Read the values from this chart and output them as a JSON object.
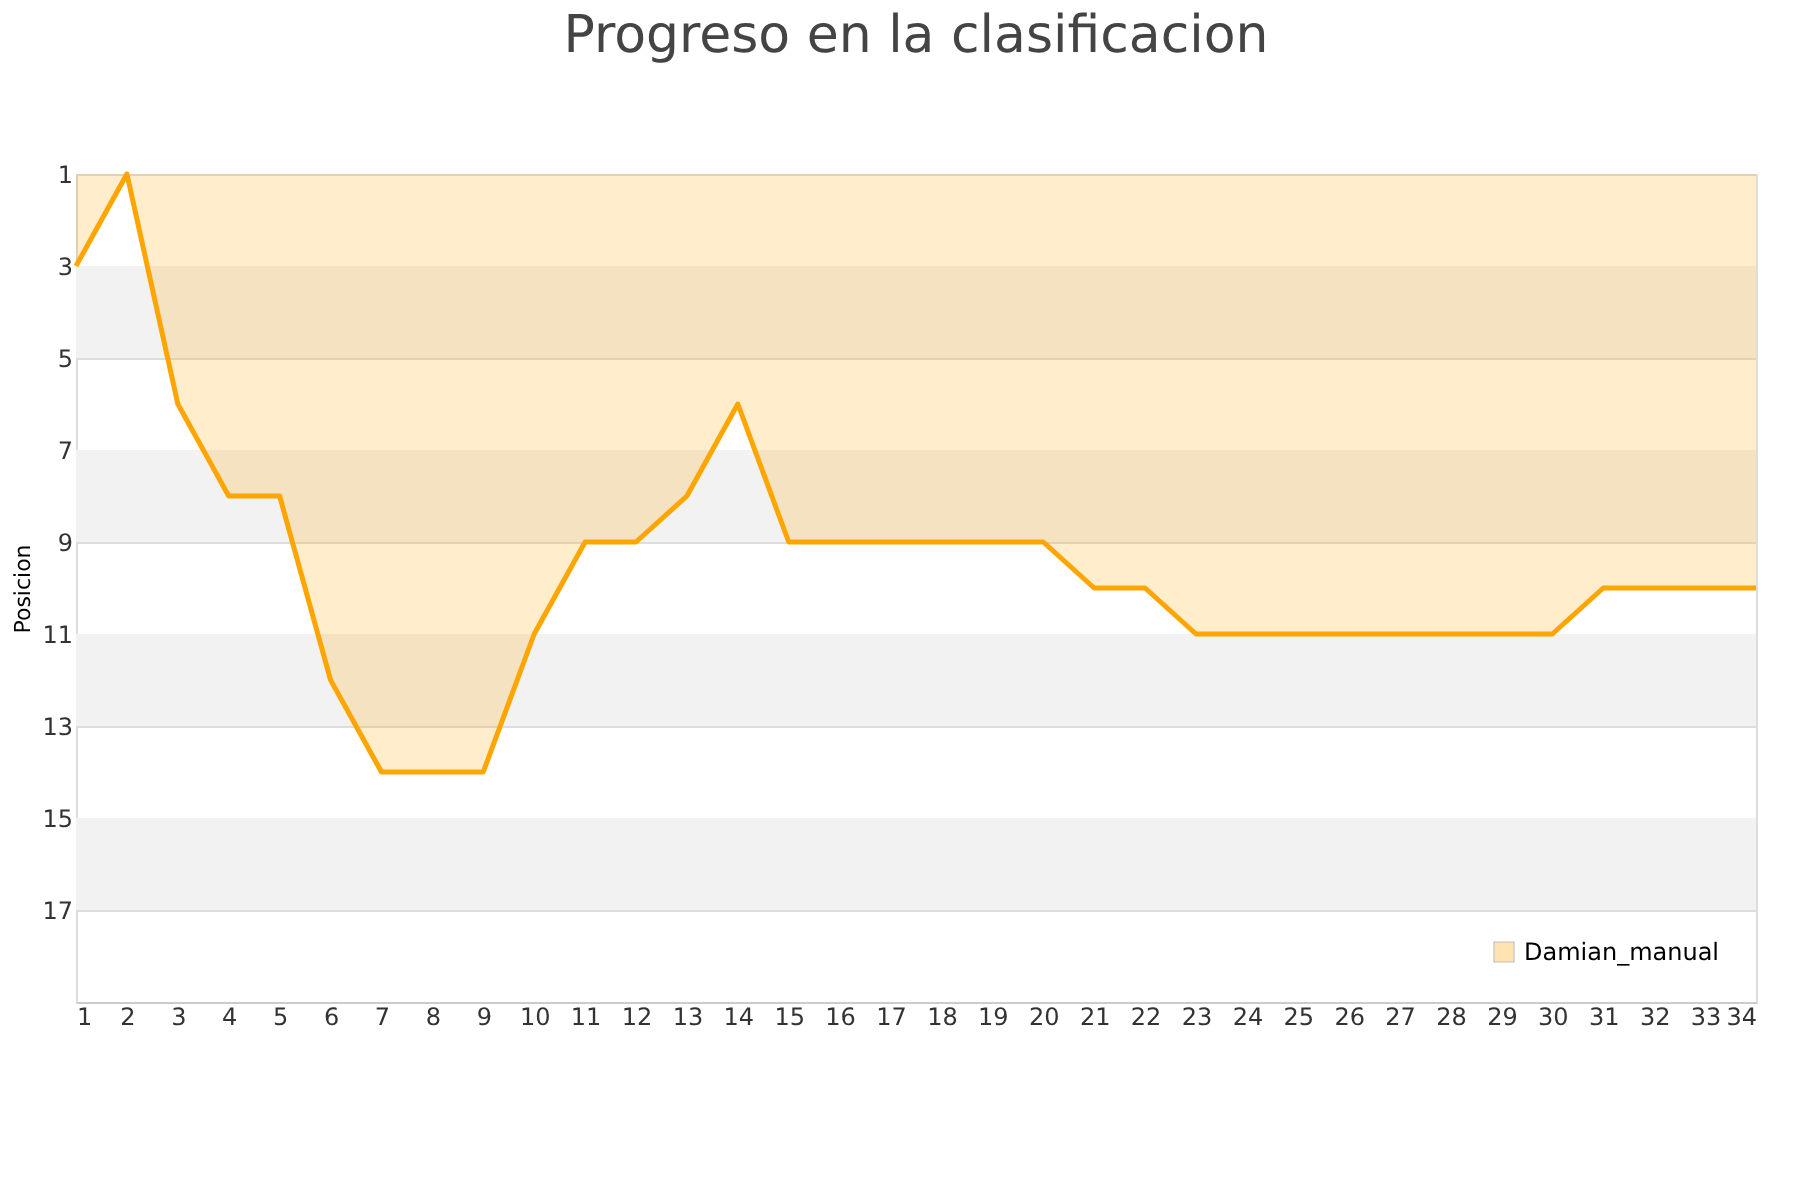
{
  "chart_data": {
    "type": "area",
    "title": "Progreso en la clasificacion",
    "ylabel": "Posicion",
    "x": [
      1,
      2,
      3,
      4,
      5,
      6,
      7,
      8,
      9,
      10,
      11,
      12,
      13,
      14,
      15,
      16,
      17,
      18,
      19,
      20,
      21,
      22,
      23,
      24,
      25,
      26,
      27,
      28,
      29,
      30,
      31,
      32,
      33,
      34
    ],
    "series": [
      {
        "name": "Damian_manual",
        "color": "#ffa500",
        "values": [
          3,
          1,
          6,
          8,
          8,
          12,
          14,
          14,
          14,
          11,
          9,
          9,
          8,
          6,
          9,
          9,
          9,
          9,
          9,
          9,
          10,
          10,
          11,
          11,
          11,
          11,
          11,
          11,
          11,
          11,
          10,
          10,
          10,
          10
        ]
      }
    ],
    "xlim": [
      1,
      34
    ],
    "xticks": [
      1,
      2,
      3,
      4,
      5,
      6,
      7,
      8,
      9,
      10,
      11,
      12,
      13,
      14,
      15,
      16,
      17,
      18,
      19,
      20,
      21,
      22,
      23,
      24,
      25,
      26,
      27,
      28,
      29,
      30,
      31,
      32,
      33,
      34
    ],
    "ylim": [
      19,
      1
    ],
    "yticks": [
      1,
      3,
      5,
      7,
      9,
      11,
      13,
      15,
      17
    ],
    "bands": [
      {
        "axis": "y",
        "from": 3,
        "to": 5,
        "color": "#f2f2f2"
      },
      {
        "axis": "y",
        "from": 7,
        "to": 9,
        "color": "#f2f2f2"
      },
      {
        "axis": "y",
        "from": 11,
        "to": 13,
        "color": "#f2f2f2"
      },
      {
        "axis": "y",
        "from": 15,
        "to": 17,
        "color": "#f2f2f2"
      }
    ],
    "grid": "y",
    "legend": "bottom right",
    "line_style": "solid"
  }
}
